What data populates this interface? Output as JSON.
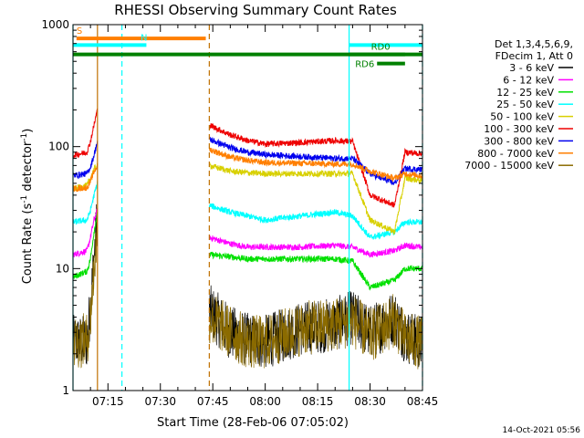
{
  "chart_data": {
    "type": "line",
    "title": "RHESSI Observing Summary Count Rates",
    "xlabel": "Start Time (28-Feb-06 07:05:02)",
    "ylabel": "Count Rate (s^-1 detector^-1)",
    "ylabel_parts": {
      "main": "Count Rate (s",
      "sup1": "-1",
      "mid": " detector",
      "sup2": "-1",
      "end": ")"
    },
    "yscale": "log",
    "xlim": [
      "07:05",
      "08:45"
    ],
    "ylim": [
      1,
      1000
    ],
    "x_ticks": [
      "07:15",
      "07:30",
      "07:45",
      "08:00",
      "08:15",
      "08:30",
      "08:45"
    ],
    "y_ticks": [
      {
        "value": 1,
        "label": "1"
      },
      {
        "value": 10,
        "label": "10"
      },
      {
        "value": 100,
        "label": "100"
      },
      {
        "value": 1000,
        "label": "1000"
      }
    ],
    "legend": {
      "placement": "right",
      "header": [
        "Det 1,3,4,5,6,9,",
        "FDecim 1, Att 0"
      ],
      "entries": [
        {
          "label": "3 - 6 keV",
          "color": "#000000"
        },
        {
          "label": "6 - 12 keV",
          "color": "#ff00ff"
        },
        {
          "label": "12 - 25 keV",
          "color": "#00e000"
        },
        {
          "label": "25 - 50 keV",
          "color": "#00ffff"
        },
        {
          "label": "50 - 100 keV",
          "color": "#d8d000"
        },
        {
          "label": "100 - 300 keV",
          "color": "#ee0000"
        },
        {
          "label": "300 - 800 keV",
          "color": "#0000ee"
        },
        {
          "label": "800 - 7000 keV",
          "color": "#ff7f00"
        },
        {
          "label": "7000 - 15000 keV",
          "color": "#8b6b00"
        }
      ]
    },
    "bars": [
      {
        "label": "S",
        "start": "07:06",
        "end": "07:43",
        "level": 770,
        "color": "#ff7f00"
      },
      {
        "label": "N",
        "start": "07:05",
        "end": "07:26",
        "level": 680,
        "color": "#00ffff"
      },
      {
        "label": "",
        "start": "08:24",
        "end": "08:45",
        "level": 680,
        "color": "#00ffff"
      },
      {
        "label": "",
        "start": "07:05",
        "end": "08:45",
        "level": 570,
        "color": "#008000"
      },
      {
        "label": "RD0",
        "start": "08:24",
        "end": "08:40",
        "level": 570,
        "color": "#008000"
      },
      {
        "label": "RD6",
        "start": "08:32",
        "end": "08:40",
        "level": 480,
        "color": "#008000"
      }
    ],
    "vlines": [
      {
        "time": "07:05",
        "color": "#00ffff",
        "style": "solid"
      },
      {
        "time": "07:12",
        "color": "#c07000",
        "style": "solid"
      },
      {
        "time": "07:19",
        "color": "#00ffff",
        "style": "dashed"
      },
      {
        "time": "07:44",
        "color": "#c07000",
        "style": "dashed"
      },
      {
        "time": "08:24",
        "color": "#00ffff",
        "style": "solid"
      },
      {
        "time": "08:45",
        "color": "#00ffff",
        "style": "dashed"
      }
    ],
    "segments": [
      {
        "start": "07:05",
        "end": "07:12"
      },
      {
        "start": "07:44",
        "end": "08:45"
      }
    ],
    "series": [
      {
        "name": "3 - 6 keV",
        "color": "#000000",
        "x": [
          "07:05",
          "07:09",
          "07:10",
          "07:11",
          "07:12",
          "07:44",
          "07:50",
          "07:55",
          "08:00",
          "08:10",
          "08:20",
          "08:25",
          "08:30",
          "08:37",
          "08:40",
          "08:44"
        ],
        "y": [
          2.5,
          2.5,
          5,
          12,
          28,
          4.5,
          3,
          2.6,
          2.5,
          3.2,
          3.5,
          4,
          3,
          4,
          2.8,
          2.5
        ]
      },
      {
        "name": "6 - 12 keV",
        "color": "#ff00ff",
        "x": [
          "07:05",
          "07:09",
          "07:10",
          "07:11",
          "07:12",
          "07:44",
          "07:50",
          "07:55",
          "08:00",
          "08:10",
          "08:20",
          "08:25",
          "08:30",
          "08:37",
          "08:40",
          "08:44"
        ],
        "y": [
          13,
          14,
          18,
          25,
          30,
          18,
          16,
          15,
          15,
          15,
          15.5,
          15,
          13,
          14,
          15.5,
          15
        ]
      },
      {
        "name": "12 - 25 keV",
        "color": "#00e000",
        "x": [
          "07:05",
          "07:09",
          "07:10",
          "07:11",
          "07:12",
          "07:44",
          "07:50",
          "07:55",
          "08:00",
          "08:10",
          "08:20",
          "08:25",
          "08:30",
          "08:37",
          "08:40",
          "08:44"
        ],
        "y": [
          8.5,
          9.5,
          12,
          20,
          28,
          13,
          12.5,
          12,
          12,
          12,
          12,
          11.5,
          7,
          8,
          10,
          10
        ]
      },
      {
        "name": "25 - 50 keV",
        "color": "#00ffff",
        "x": [
          "07:05",
          "07:09",
          "07:10",
          "07:11",
          "07:12",
          "07:44",
          "07:50",
          "07:55",
          "08:00",
          "08:10",
          "08:20",
          "08:25",
          "08:30",
          "08:37",
          "08:40",
          "08:44"
        ],
        "y": [
          24,
          25,
          30,
          40,
          50,
          33,
          29,
          27,
          25,
          27,
          29,
          27,
          18,
          20,
          24,
          24
        ]
      },
      {
        "name": "50 - 100 keV",
        "color": "#d8d000",
        "x": [
          "07:05",
          "07:09",
          "07:10",
          "07:11",
          "07:12",
          "07:44",
          "07:50",
          "07:55",
          "08:00",
          "08:10",
          "08:20",
          "08:25",
          "08:30",
          "08:37",
          "08:40",
          "08:44"
        ],
        "y": [
          45,
          48,
          55,
          65,
          70,
          70,
          63,
          61,
          60,
          60,
          60,
          60,
          25,
          20,
          55,
          53
        ]
      },
      {
        "name": "100 - 300 keV",
        "color": "#ee0000",
        "x": [
          "07:05",
          "07:09",
          "07:10",
          "07:11",
          "07:12",
          "07:44",
          "07:50",
          "07:55",
          "08:00",
          "08:10",
          "08:20",
          "08:25",
          "08:30",
          "08:37",
          "08:40",
          "08:44"
        ],
        "y": [
          85,
          90,
          110,
          150,
          200,
          150,
          125,
          112,
          105,
          108,
          112,
          110,
          40,
          33,
          90,
          88
        ]
      },
      {
        "name": "300 - 800 keV",
        "color": "#0000ee",
        "x": [
          "07:05",
          "07:09",
          "07:10",
          "07:11",
          "07:12",
          "07:44",
          "07:50",
          "07:55",
          "08:00",
          "08:10",
          "08:20",
          "08:25",
          "08:30",
          "08:37",
          "08:40",
          "08:44"
        ],
        "y": [
          58,
          60,
          68,
          85,
          110,
          115,
          98,
          90,
          86,
          83,
          80,
          80,
          60,
          50,
          66,
          65
        ]
      },
      {
        "name": "800 - 7000 keV",
        "color": "#ff7f00",
        "x": [
          "07:05",
          "07:09",
          "07:10",
          "07:11",
          "07:12",
          "07:44",
          "07:50",
          "07:55",
          "08:00",
          "08:10",
          "08:20",
          "08:25",
          "08:30",
          "08:37",
          "08:40",
          "08:44"
        ],
        "y": [
          45,
          46,
          52,
          62,
          70,
          95,
          82,
          77,
          74,
          73,
          72,
          72,
          63,
          55,
          60,
          58
        ]
      },
      {
        "name": "7000 - 15000 keV",
        "color": "#8b6b00",
        "x": [
          "07:05",
          "07:09",
          "07:10",
          "07:11",
          "07:12",
          "07:44",
          "07:50",
          "07:55",
          "08:00",
          "08:10",
          "08:20",
          "08:25",
          "08:30",
          "08:37",
          "08:40",
          "08:44"
        ],
        "y": [
          2.5,
          2.6,
          4,
          10,
          20,
          4,
          3,
          2.5,
          2.5,
          3.2,
          3.5,
          3.8,
          2.8,
          3.8,
          2.6,
          2.5
        ]
      }
    ]
  },
  "footer": {
    "timestamp": "14-Oct-2021 05:56"
  }
}
